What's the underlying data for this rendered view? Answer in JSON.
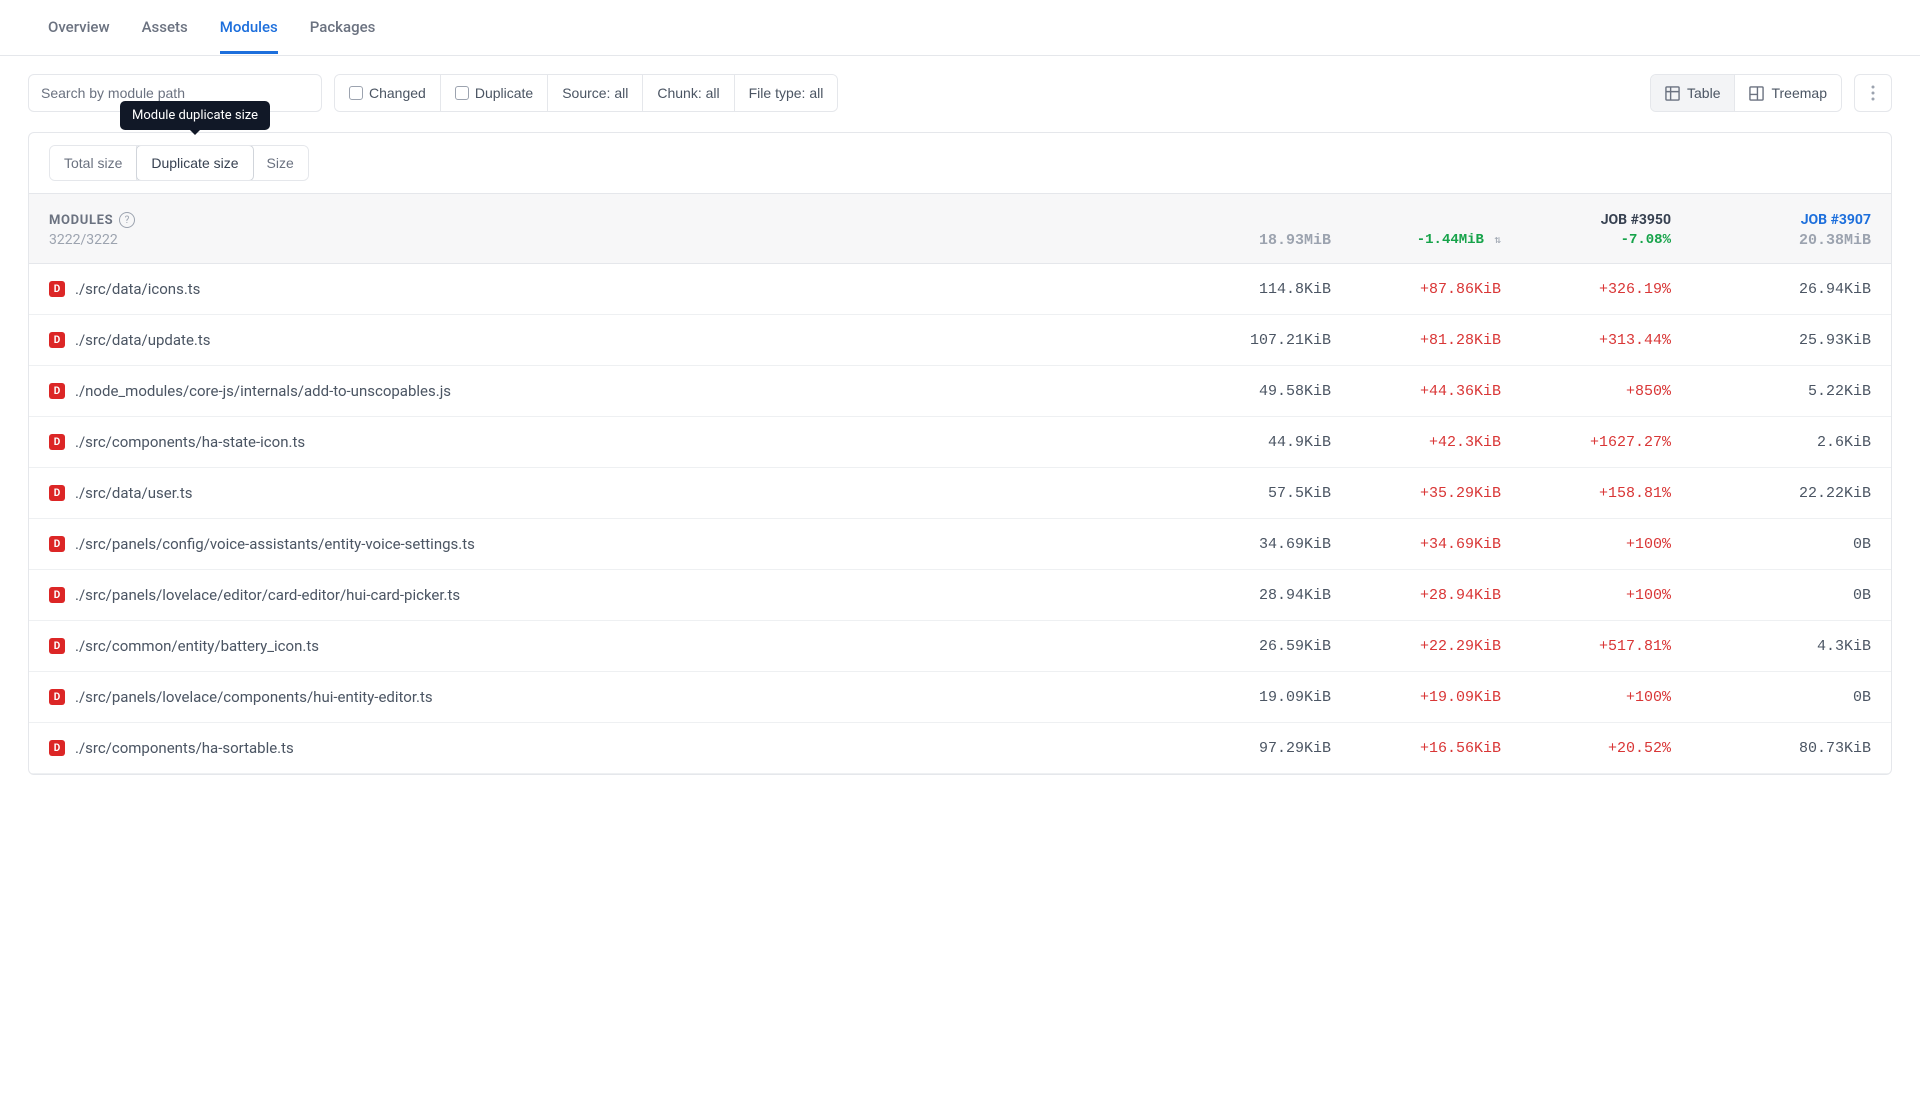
{
  "nav": {
    "tabs": [
      {
        "label": "Overview",
        "active": false
      },
      {
        "label": "Assets",
        "active": false
      },
      {
        "label": "Modules",
        "active": true
      },
      {
        "label": "Packages",
        "active": false
      }
    ]
  },
  "search": {
    "placeholder": "Search by module path"
  },
  "filters": {
    "changed": "Changed",
    "duplicate": "Duplicate",
    "source": "Source: all",
    "chunk": "Chunk: all",
    "filetype": "File type: all"
  },
  "views": {
    "table": "Table",
    "treemap": "Treemap"
  },
  "tooltip": "Module duplicate size",
  "metrics": {
    "total": "Total size",
    "duplicate": "Duplicate size",
    "size": "Size"
  },
  "header": {
    "title": "MODULES",
    "count": "3222/3222",
    "jobA": {
      "label": "JOB #3950",
      "total": "18.93MiB",
      "delta": "-1.44MiB",
      "pct": "-7.08%"
    },
    "jobB": {
      "label": "JOB #3907",
      "total": "20.38MiB"
    }
  },
  "rows": [
    {
      "badge": "D",
      "path": "./src/data/icons.ts",
      "size": "114.8KiB",
      "delta": "+87.86KiB",
      "pct": "+326.19%",
      "baseline": "26.94KiB"
    },
    {
      "badge": "D",
      "path": "./src/data/update.ts",
      "size": "107.21KiB",
      "delta": "+81.28KiB",
      "pct": "+313.44%",
      "baseline": "25.93KiB"
    },
    {
      "badge": "D",
      "path": "./node_modules/core-js/internals/add-to-unscopables.js",
      "size": "49.58KiB",
      "delta": "+44.36KiB",
      "pct": "+850%",
      "baseline": "5.22KiB"
    },
    {
      "badge": "D",
      "path": "./src/components/ha-state-icon.ts",
      "size": "44.9KiB",
      "delta": "+42.3KiB",
      "pct": "+1627.27%",
      "baseline": "2.6KiB"
    },
    {
      "badge": "D",
      "path": "./src/data/user.ts",
      "size": "57.5KiB",
      "delta": "+35.29KiB",
      "pct": "+158.81%",
      "baseline": "22.22KiB"
    },
    {
      "badge": "D",
      "path": "./src/panels/config/voice-assistants/entity-voice-settings.ts",
      "size": "34.69KiB",
      "delta": "+34.69KiB",
      "pct": "+100%",
      "baseline": "0B"
    },
    {
      "badge": "D",
      "path": "./src/panels/lovelace/editor/card-editor/hui-card-picker.ts",
      "size": "28.94KiB",
      "delta": "+28.94KiB",
      "pct": "+100%",
      "baseline": "0B"
    },
    {
      "badge": "D",
      "path": "./src/common/entity/battery_icon.ts",
      "size": "26.59KiB",
      "delta": "+22.29KiB",
      "pct": "+517.81%",
      "baseline": "4.3KiB"
    },
    {
      "badge": "D",
      "path": "./src/panels/lovelace/components/hui-entity-editor.ts",
      "size": "19.09KiB",
      "delta": "+19.09KiB",
      "pct": "+100%",
      "baseline": "0B"
    },
    {
      "badge": "D",
      "path": "./src/components/ha-sortable.ts",
      "size": "97.29KiB",
      "delta": "+16.56KiB",
      "pct": "+20.52%",
      "baseline": "80.73KiB"
    }
  ],
  "colors": {
    "accent": "#1d6fdc",
    "positive": "#16a34a",
    "negative": "#d93636",
    "badge": "#dc2626",
    "text_muted": "#6b7280",
    "border": "#e5e7eb"
  }
}
